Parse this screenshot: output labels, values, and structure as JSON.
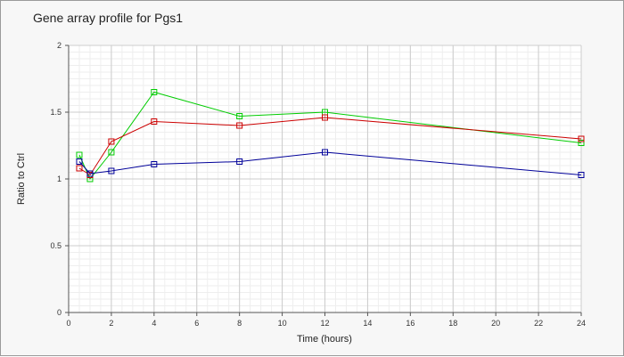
{
  "chart_data": {
    "type": "line",
    "title": "Gene array profile for Pgs1",
    "xlabel": "Time (hours)",
    "ylabel": "Ratio to Ctrl",
    "xlim": [
      0,
      24
    ],
    "ylim": [
      0,
      2
    ],
    "x_ticks": [
      0,
      2,
      4,
      6,
      8,
      10,
      12,
      14,
      16,
      18,
      20,
      22,
      24
    ],
    "y_ticks": [
      0,
      0.5,
      1,
      1.5,
      2
    ],
    "y_tick_labels": [
      "0",
      "0.5",
      "1",
      "1.5",
      "2"
    ],
    "grid": true,
    "minor_grid": true,
    "legend": "none",
    "marker": "square",
    "series": [
      {
        "color": "#00cc00",
        "x": [
          0.5,
          1,
          2,
          4,
          8,
          12,
          24
        ],
        "y": [
          1.18,
          1.0,
          1.2,
          1.65,
          1.47,
          1.5,
          1.27
        ]
      },
      {
        "color": "#cc0000",
        "x": [
          0.5,
          1,
          2,
          4,
          8,
          12,
          24
        ],
        "y": [
          1.08,
          1.03,
          1.28,
          1.43,
          1.4,
          1.46,
          1.3
        ]
      },
      {
        "color": "#000099",
        "x": [
          0.5,
          1,
          2,
          4,
          8,
          12,
          24
        ],
        "y": [
          1.13,
          1.04,
          1.06,
          1.11,
          1.13,
          1.2,
          1.03
        ]
      }
    ]
  }
}
